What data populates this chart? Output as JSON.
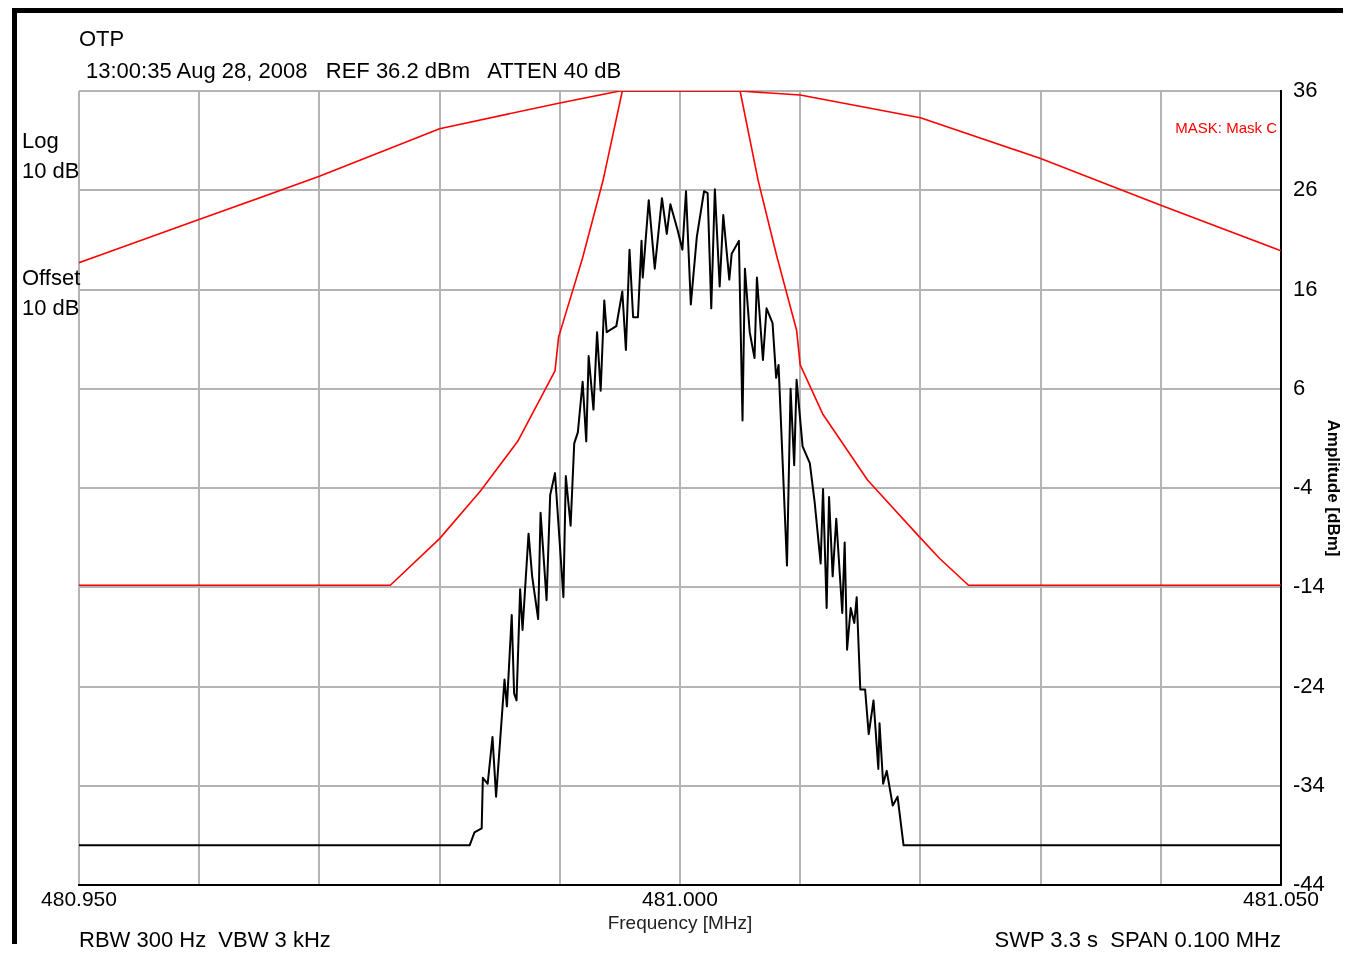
{
  "chart_data": {
    "type": "line",
    "title": "OTP",
    "subtitle": "13:00:35 Aug 28, 2008   REF 36.2 dBm   ATTEN 40 dB",
    "xlabel": "Frequency [MHz]",
    "ylabel": "Amplitude [dBm]",
    "annotations": [
      "Log 10 dB",
      "Offset 10 dB",
      "RBW 300 Hz  VBW 3 kHz",
      "SWP 3.3 s  SPAN 0.100 MHz"
    ],
    "xlim": [
      480.95,
      481.05
    ],
    "xticks": [
      {
        "value": 480.95,
        "label": "480.950"
      },
      {
        "value": 480.96,
        "label": null
      },
      {
        "value": 480.97,
        "label": null
      },
      {
        "value": 480.98,
        "label": null
      },
      {
        "value": 480.99,
        "label": null
      },
      {
        "value": 481.0,
        "label": "481.000"
      },
      {
        "value": 481.01,
        "label": null
      },
      {
        "value": 481.02,
        "label": null
      },
      {
        "value": 481.03,
        "label": null
      },
      {
        "value": 481.04,
        "label": null
      },
      {
        "value": 481.05,
        "label": "481.050"
      }
    ],
    "ylim": [
      -44,
      36
    ],
    "yticks": [
      36,
      26,
      16,
      6,
      -4,
      -14,
      -24,
      -34,
      -44
    ],
    "grid": true,
    "legend": false,
    "marker": "none",
    "line_style": "solid",
    "series": [
      {
        "name": "MASK: Mask C",
        "color": "#ff0000",
        "x": [
          480.95,
          480.9601,
          480.97,
          480.98,
          480.99,
          480.995,
          481.005,
          481.01,
          481.02,
          481.03,
          481.04,
          481.05
        ],
        "values": [
          18.7,
          23.1,
          27.4,
          32.2,
          34.8,
          36,
          36,
          35.6,
          33.3,
          29.2,
          24.5,
          19.9
        ]
      },
      {
        "color": "#ff0000",
        "x": [
          480.95,
          480.9759,
          480.98,
          480.9834,
          480.9865,
          480.9896,
          480.9899,
          480.9919,
          480.9936,
          480.9952,
          481.005,
          481.0065,
          481.008,
          481.0097,
          481.01,
          481.0119,
          481.0156,
          481.0199,
          481.0216,
          481.024,
          481.05
        ],
        "values": [
          -13.8,
          -13.8,
          -9.1,
          -4.3,
          0.7,
          7.8,
          11.2,
          19.2,
          27.0,
          36,
          36,
          27.0,
          19.6,
          11.9,
          8.4,
          3.4,
          -3.2,
          -8.9,
          -11.1,
          -13.8,
          -13.8
        ]
      },
      {
        "color": "#000000",
        "x": [
          480.95,
          480.9825,
          480.9829,
          480.9835,
          480.9836,
          480.984,
          480.9844,
          480.9847,
          480.9854,
          480.9856,
          480.986,
          480.9862,
          480.9864,
          480.9867,
          480.9869,
          480.9874,
          480.9877,
          480.9882,
          480.9884,
          480.9889,
          480.9892,
          480.9896,
          480.9903,
          480.9905,
          480.9909,
          480.9912,
          480.9915,
          480.9919,
          480.9922,
          480.9924,
          480.9928,
          480.9931,
          480.9934,
          480.9937,
          480.9939,
          480.9947,
          480.9952,
          480.9955,
          480.9958,
          480.9961,
          480.9965,
          480.9968,
          480.9969,
          480.9974,
          480.9979,
          480.9985,
          480.9989,
          480.9992,
          480.9998,
          481.0002,
          481.0005,
          481.0009,
          481.0014,
          481.002,
          481.0023,
          481.0026,
          481.0029,
          481.0033,
          481.0036,
          481.0041,
          481.0043,
          481.0049,
          481.0052,
          481.0054,
          481.0058,
          481.0062,
          481.0064,
          481.0069,
          481.0072,
          481.0077,
          481.008,
          481.0082,
          481.0089,
          481.0092,
          481.0095,
          481.0097,
          481.0102,
          481.0108,
          481.0112,
          481.0117,
          481.0119,
          481.0122,
          481.0124,
          481.0127,
          481.013,
          481.0135,
          481.0137,
          481.0139,
          481.0142,
          481.0145,
          481.0147,
          481.015,
          481.0154,
          481.0157,
          481.0161,
          481.0165,
          481.0166,
          481.0169,
          481.0172,
          481.0177,
          481.0181,
          481.0186,
          481.05
        ],
        "values": [
          -40.0,
          -40.0,
          -38.7,
          -38.3,
          -33.2,
          -33.8,
          -29.1,
          -35.1,
          -23.3,
          -26.0,
          -16.8,
          -24.7,
          -25.4,
          -14.2,
          -18.3,
          -8.6,
          -12.9,
          -17.2,
          -6.5,
          -15.3,
          -4.7,
          -2.5,
          -15.0,
          -2.8,
          -7.8,
          0.5,
          1.6,
          6.7,
          0.7,
          9.3,
          3.9,
          11.7,
          5.8,
          14.9,
          11.7,
          12.3,
          15.8,
          9.9,
          20.0,
          13.2,
          13.2,
          20.9,
          17.2,
          25.0,
          18.1,
          25.2,
          21.6,
          24.6,
          22.0,
          20.0,
          25.9,
          14.5,
          21.3,
          25.9,
          25.7,
          14.1,
          26.1,
          16.3,
          23.5,
          17.0,
          19.6,
          20.9,
          2.8,
          18.1,
          11.7,
          9.1,
          17.2,
          8.9,
          14.1,
          12.6,
          7.1,
          8.4,
          -11.8,
          6.0,
          -1.7,
          6.9,
          0.2,
          -1.5,
          -5.4,
          -11.6,
          -4.1,
          -16.1,
          -4.9,
          -12.9,
          -7.1,
          -16.6,
          -9.5,
          -20.3,
          -16.1,
          -17.6,
          -15.0,
          -24.3,
          -24.3,
          -28.8,
          -25.4,
          -32.3,
          -27.7,
          -33.8,
          -32.5,
          -36.0,
          -35.1,
          -40.0,
          -40.0
        ]
      }
    ]
  }
}
